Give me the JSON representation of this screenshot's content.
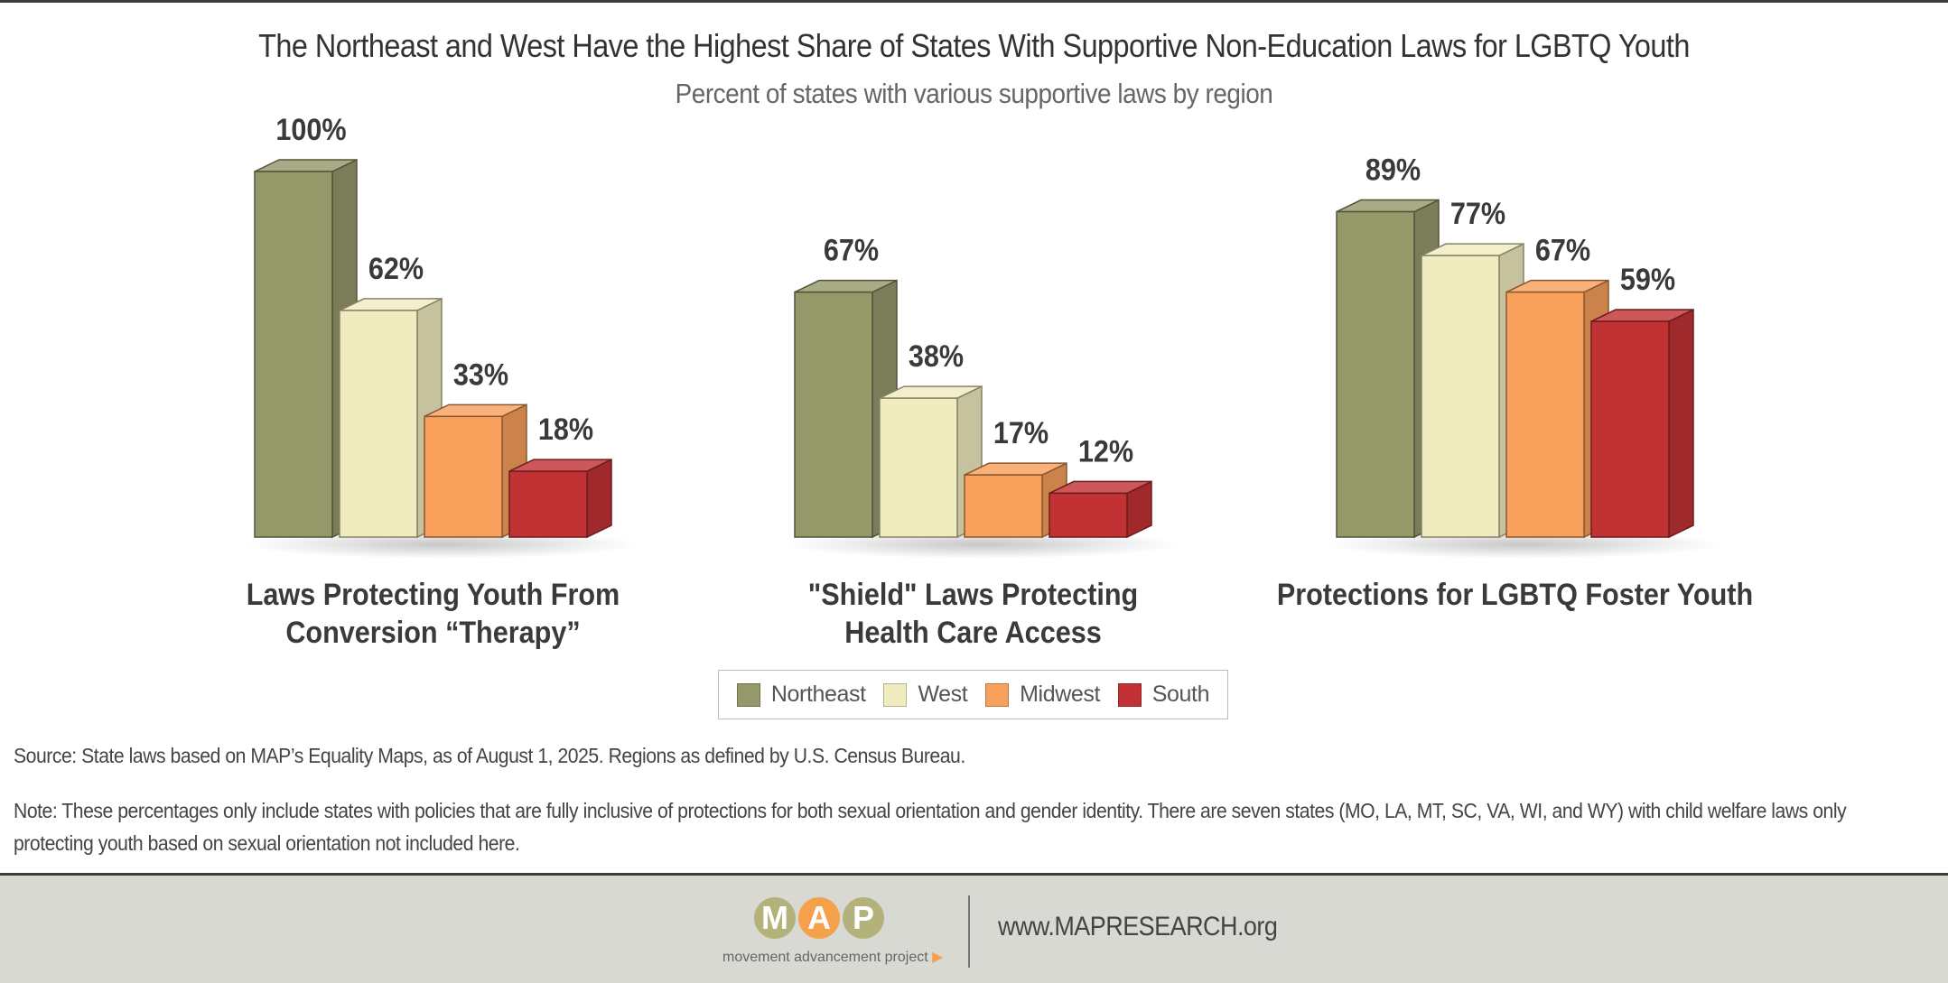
{
  "title": "The Northeast and West Have the Highest Share of States With Supportive Non-Education Laws for LGBTQ Youth",
  "subtitle": "Percent of states with various supportive laws by region",
  "chart_data": {
    "type": "bar",
    "title": "The Northeast and West Have the Highest Share of States With Supportive Non-Education Laws for LGBTQ Youth",
    "subtitle": "Percent of states with various supportive laws by region",
    "categories": [
      [
        "Laws Protecting Youth From",
        "Conversion “Therapy”"
      ],
      [
        "\"Shield\" Laws Protecting",
        "Health Care Access"
      ],
      [
        "Protections for LGBTQ Foster Youth"
      ]
    ],
    "series": [
      {
        "name": "Northeast",
        "color": "#95996a",
        "values": [
          100,
          67,
          89
        ],
        "labels": [
          "100%",
          "67%",
          "89%"
        ]
      },
      {
        "name": "West",
        "color": "#f1ecbf",
        "values": [
          62,
          38,
          77
        ],
        "labels": [
          "62%",
          "38%",
          "77%"
        ]
      },
      {
        "name": "Midwest",
        "color": "#f8a05c",
        "values": [
          33,
          17,
          67
        ],
        "labels": [
          "33%",
          "17%",
          "67%"
        ]
      },
      {
        "name": "South",
        "color": "#c23235",
        "values": [
          18,
          12,
          59
        ],
        "labels": [
          "18%",
          "12%",
          "59%"
        ]
      }
    ],
    "ylim": [
      0,
      100
    ],
    "legend_position": "bottom-center",
    "grid": false
  },
  "legend": [
    {
      "label": "Northeast",
      "color": "#95996a"
    },
    {
      "label": "West",
      "color": "#f1ecbf"
    },
    {
      "label": "Midwest",
      "color": "#f8a05c"
    },
    {
      "label": "South",
      "color": "#c23235"
    }
  ],
  "source": "Source: State laws based on MAP’s Equality Maps, as of August 1, 2025. Regions as defined by U.S. Census Bureau.",
  "note": "Note: These percentages only include states with policies that are fully inclusive of protections for both sexual orientation and gender identity. There are seven states (MO, LA, MT, SC, VA, WI, and WY) with child welfare laws only protecting youth based on sexual orientation not included here.",
  "footer": {
    "logo_letters": [
      "M",
      "A",
      "P"
    ],
    "logo_tagline": "movement advancement project",
    "website": "www.MAPRESEARCH.org"
  }
}
